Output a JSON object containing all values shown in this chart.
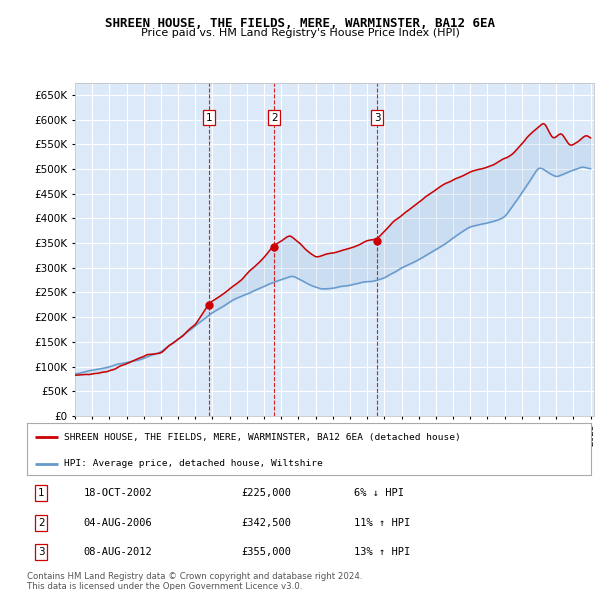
{
  "title": "SHREEN HOUSE, THE FIELDS, MERE, WARMINSTER, BA12 6EA",
  "subtitle": "Price paid vs. HM Land Registry's House Price Index (HPI)",
  "legend_line1": "SHREEN HOUSE, THE FIELDS, MERE, WARMINSTER, BA12 6EA (detached house)",
  "legend_line2": "HPI: Average price, detached house, Wiltshire",
  "footer1": "Contains HM Land Registry data © Crown copyright and database right 2024.",
  "footer2": "This data is licensed under the Open Government Licence v3.0.",
  "sale_labels": [
    "1",
    "2",
    "3"
  ],
  "sale_dates_str": [
    "18-OCT-2002",
    "04-AUG-2006",
    "08-AUG-2012"
  ],
  "sale_prices": [
    225000,
    342500,
    355000
  ],
  "sale_pct": [
    "6% ↓ HPI",
    "11% ↑ HPI",
    "13% ↑ HPI"
  ],
  "sale_years": [
    2002.79,
    2006.59,
    2012.59
  ],
  "ylim": [
    0,
    675000
  ],
  "yticks": [
    0,
    50000,
    100000,
    150000,
    200000,
    250000,
    300000,
    350000,
    400000,
    450000,
    500000,
    550000,
    600000,
    650000
  ],
  "plot_bg_color": "#dce9f8",
  "grid_color": "#ffffff",
  "red_color": "#cc0000",
  "blue_color": "#6699cc",
  "sale_line_color": "#cc0000",
  "sale_box_color": "#cc0000",
  "fill_color": "#dce9f8"
}
